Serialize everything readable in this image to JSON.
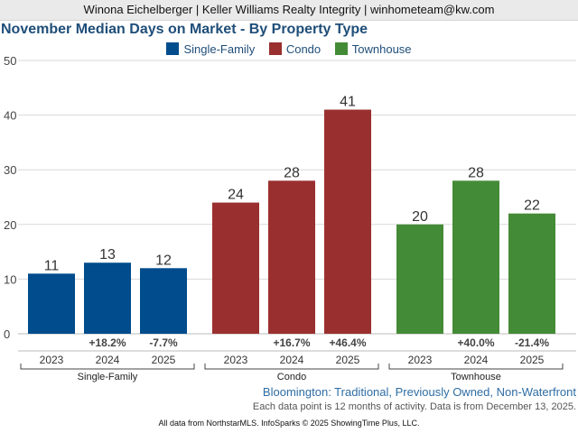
{
  "header": {
    "text": "Winona Eichelberger | Keller Williams Realty Integrity | winhometeam@kw.com"
  },
  "chart_data": {
    "type": "bar",
    "title": "November Median Days on Market - By Property Type",
    "subtitle": "Bloomington: Traditional, Previously Owned, Non-Waterfront",
    "note": "Each data point is 12 months of activity. Data is from December 13, 2025.",
    "years": [
      "2023",
      "2024",
      "2025"
    ],
    "ylim": [
      0,
      50
    ],
    "yticks": [
      0,
      10,
      20,
      30,
      40,
      50
    ],
    "grid": true,
    "legend_position": "top-center",
    "series": [
      {
        "name": "Single-Family",
        "color": "#004c8c",
        "values": [
          11,
          13,
          12
        ],
        "changes": [
          "",
          "+18.2%",
          "-7.7%"
        ]
      },
      {
        "name": "Condo",
        "color": "#99302f",
        "values": [
          24,
          28,
          41
        ],
        "changes": [
          "",
          "+16.7%",
          "+46.4%"
        ]
      },
      {
        "name": "Townhouse",
        "color": "#448b37",
        "values": [
          20,
          28,
          22
        ],
        "changes": [
          "",
          "+40.0%",
          "-21.4%"
        ]
      }
    ]
  },
  "footer": {
    "text": "All data from NorthstarMLS. InfoSparks © 2025 ShowingTime Plus, LLC."
  }
}
